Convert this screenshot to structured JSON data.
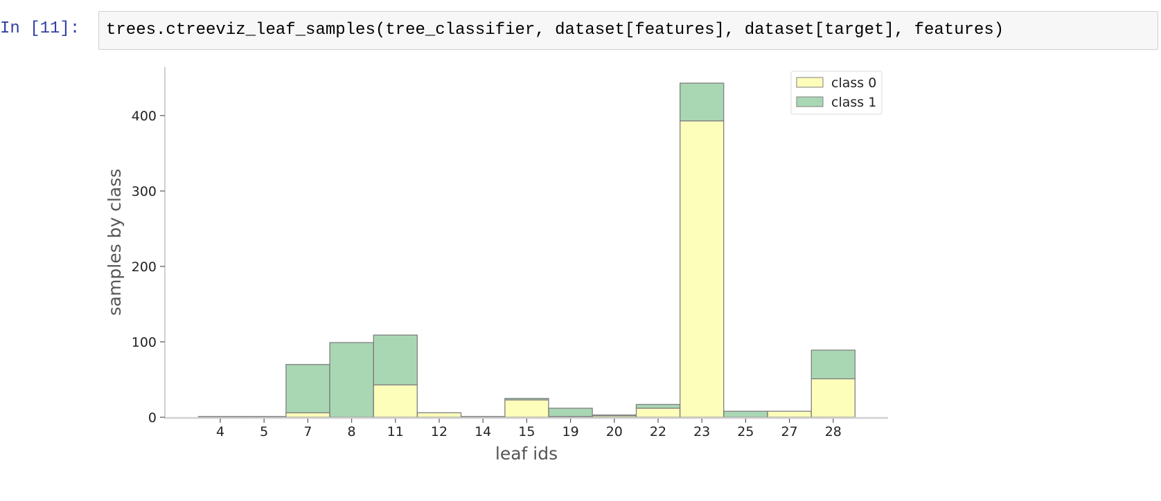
{
  "cell": {
    "prompt": "In [11]:",
    "code": "trees.ctreeviz_leaf_samples(tree_classifier, dataset[features], dataset[target], features)"
  },
  "colors": {
    "class0": "#fefebb",
    "class1": "#a9d7b4",
    "bar_edge": "#7f7f7f",
    "prompt": "#303f9f"
  },
  "chart_data": {
    "type": "bar",
    "stacked": true,
    "categories": [
      "4",
      "5",
      "7",
      "8",
      "11",
      "12",
      "14",
      "15",
      "19",
      "20",
      "22",
      "23",
      "25",
      "27",
      "28"
    ],
    "series": [
      {
        "name": "class 0",
        "values": [
          0,
          0,
          6,
          0,
          43,
          6,
          0,
          23,
          1,
          2,
          12,
          393,
          0,
          8,
          51
        ]
      },
      {
        "name": "class 1",
        "values": [
          1,
          1,
          64,
          99,
          66,
          0,
          1,
          2,
          11,
          1,
          5,
          50,
          8,
          0,
          38
        ]
      }
    ],
    "xlabel": "leaf ids",
    "ylabel": "samples by class",
    "ylim": [
      0,
      465
    ],
    "yticks": [
      0,
      100,
      200,
      300,
      400
    ],
    "legend": "top-right",
    "grid": false
  }
}
